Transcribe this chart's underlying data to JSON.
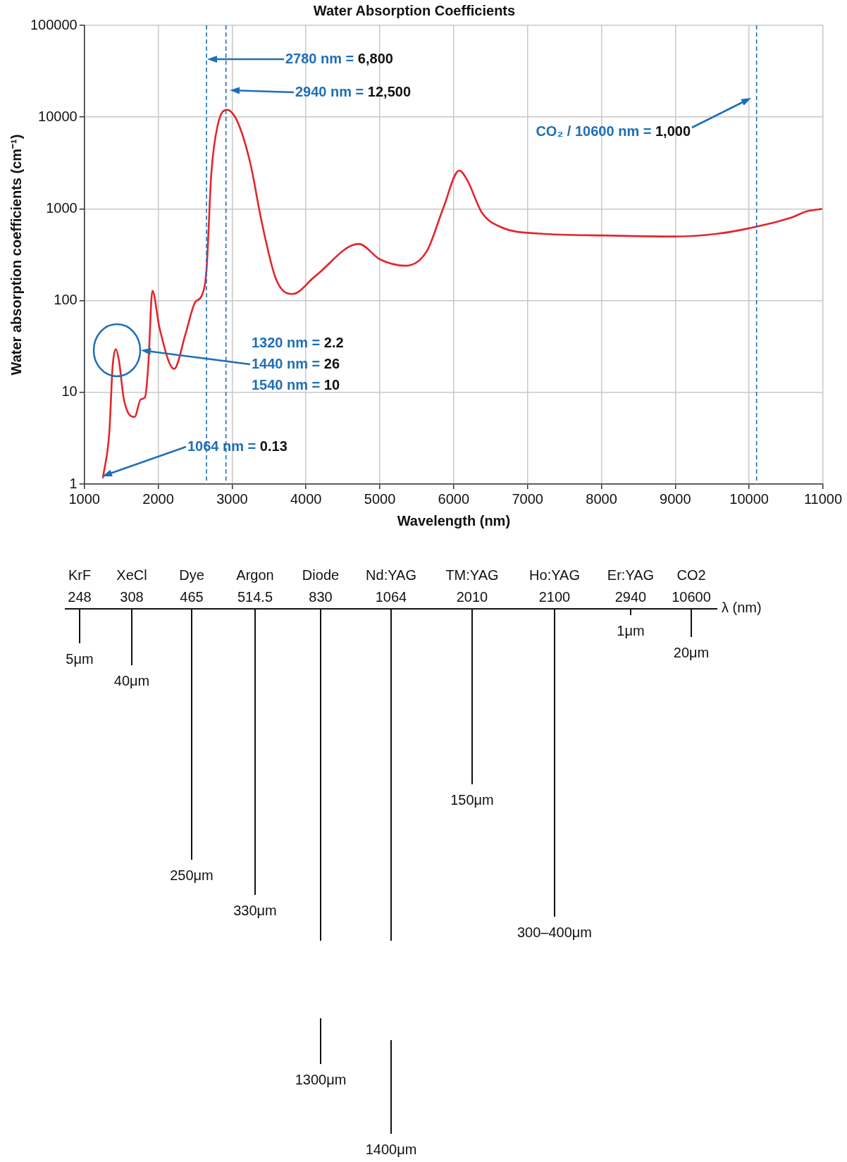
{
  "chart_data": [
    {
      "type": "line",
      "title": "Water Absorption Coefficients",
      "xlabel": "Wavelength (nm)",
      "ylabel": "Water absorption coefficients (cm⁻¹)",
      "x": [
        1250,
        1338,
        1382,
        1425,
        1469,
        1535,
        1680,
        1763,
        1820,
        1864,
        1921,
        2018,
        2215,
        2368,
        2500,
        2588,
        2653,
        2719,
        2807,
        2930,
        3070,
        3246,
        3400,
        3596,
        3816,
        4123,
        4715,
        5000,
        5351,
        5636,
        5855,
        6075,
        6184,
        6382,
        6645,
        7171,
        8048,
        8969,
        9583,
        10000,
        10592,
        10768,
        10987
      ],
      "values": [
        1.16,
        3.7,
        19,
        29.6,
        22,
        8.4,
        5.4,
        8.4,
        8.8,
        19,
        128,
        50,
        18,
        43,
        96,
        113,
        215,
        2450,
        8300,
        12000,
        9000,
        3150,
        725,
        170,
        118,
        184,
        415,
        282,
        240,
        346,
        1000,
        2620,
        2050,
        910,
        630,
        537,
        513,
        500,
        537,
        615,
        815,
        935,
        1000
      ],
      "color": "#e3262b",
      "xlim": [
        1000,
        11000
      ],
      "xticks": [
        1000,
        2000,
        3000,
        4000,
        5000,
        6000,
        7000,
        8000,
        9000,
        10000,
        11000
      ],
      "ylim": [
        1,
        100000
      ],
      "yticks": [
        1,
        10,
        100,
        1000,
        10000,
        100000
      ],
      "log": "y",
      "grid": true,
      "ref_lines": [
        {
          "axis": "x",
          "value": 2653,
          "color": "#1f6fb5",
          "line_style": "dashed"
        },
        {
          "axis": "x",
          "value": 2917,
          "color": "#1f6fb5",
          "line_style": "dashed"
        },
        {
          "axis": "x",
          "value": 10100,
          "color": "#1f6fb5",
          "line_style": "dashed"
        }
      ],
      "annotations": [
        "2780 nm = 6,800",
        "2940 nm = 12,500",
        "CO₂ / 10600 nm = 1,000",
        "1320 nm = 2.2",
        "1440 nm = 26",
        "1540 nm = 10",
        "1064 nm = 0.13"
      ]
    },
    {
      "type": "other",
      "xlabel": "λ (nm)",
      "categories": [
        "KrF",
        "XeCl",
        "Dye",
        "Argon",
        "Diode",
        "Nd:YAG",
        "TM:YAG",
        "Ho:YAG",
        "Er:YAG",
        "CO2"
      ],
      "values": [
        248,
        308,
        465,
        514.5,
        830,
        1064,
        2010,
        2100,
        2940,
        10600
      ],
      "data_labels": true,
      "annotations": [
        {
          "text": "5μm",
          "x": "KrF"
        },
        {
          "text": "40μm",
          "x": "XeCl"
        },
        {
          "text": "250μm",
          "x": "Dye"
        },
        {
          "text": "330μm",
          "x": "Argon"
        },
        {
          "text": "1300μm",
          "x": "Diode"
        },
        {
          "text": "1400μm",
          "x": "Nd:YAG"
        },
        {
          "text": "150μm",
          "x": "TM:YAG"
        },
        {
          "text": "300–400μm",
          "x": "Ho:YAG"
        },
        {
          "text": "1μm",
          "x": "Er:YAG"
        },
        {
          "text": "20μm",
          "x": "CO2"
        }
      ]
    }
  ]
}
